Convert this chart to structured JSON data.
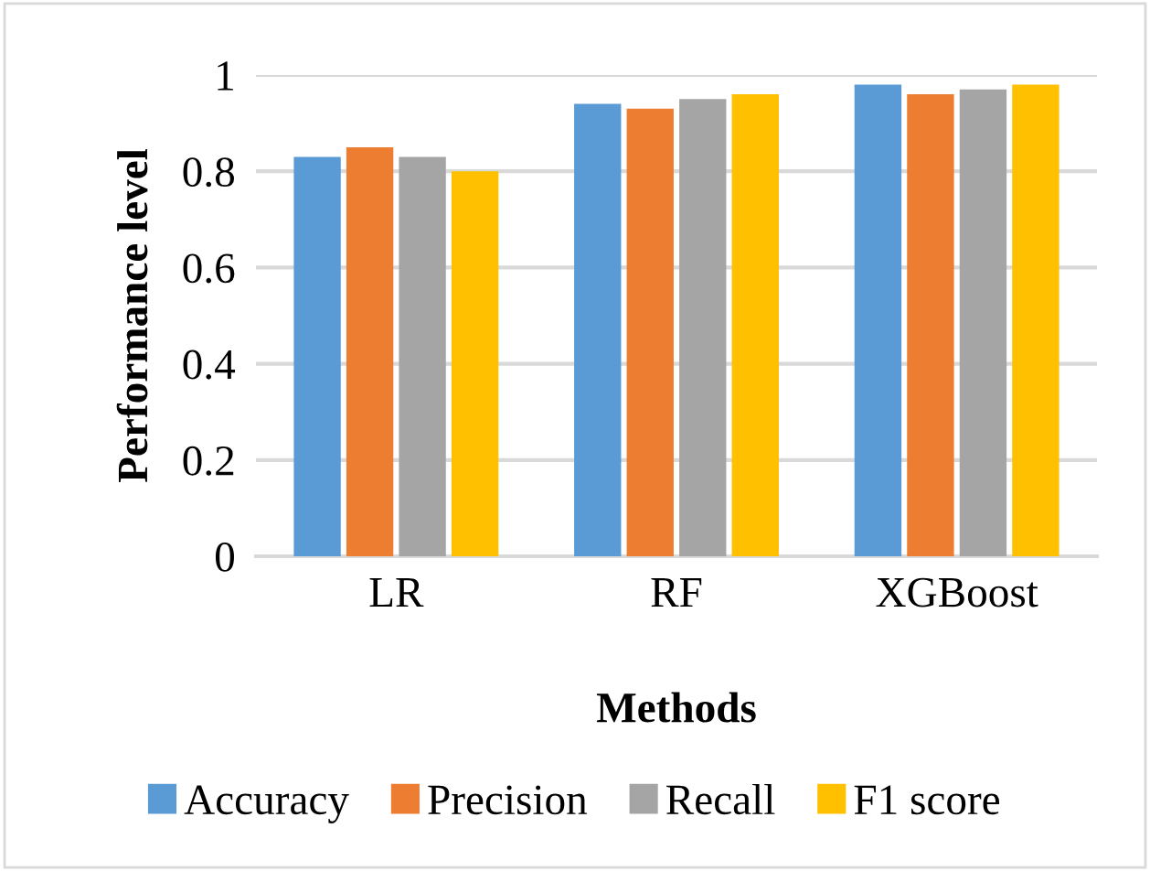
{
  "chart_data": {
    "type": "bar",
    "categories": [
      "LR",
      "RF",
      "XGBoost"
    ],
    "xlabel": "Methods",
    "ylabel": "Performance level",
    "series": [
      {
        "name": "Accuracy",
        "color": "#5b9bd5",
        "values": [
          0.83,
          0.94,
          0.98
        ]
      },
      {
        "name": "Precision",
        "color": "#ed7d31",
        "values": [
          0.85,
          0.93,
          0.96
        ]
      },
      {
        "name": "Recall",
        "color": "#a5a5a5",
        "values": [
          0.83,
          0.95,
          0.97
        ]
      },
      {
        "name": "F1 score",
        "color": "#ffc000",
        "values": [
          0.8,
          0.96,
          0.98
        ]
      }
    ],
    "ylim": [
      0,
      1
    ],
    "yticks": [
      0,
      0.2,
      0.4,
      0.6,
      0.8,
      1
    ],
    "grid": "y",
    "legend": "bottom"
  }
}
